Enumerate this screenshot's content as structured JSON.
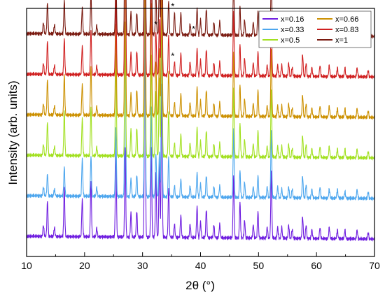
{
  "chart_data": {
    "type": "line",
    "xlabel": "2θ (°)",
    "ylabel": "Intensity (arb. units)",
    "xlim": [
      10,
      70
    ],
    "xticks": [
      "10",
      "20",
      "30",
      "40",
      "50",
      "60",
      "70"
    ],
    "y_tick_labels": "none",
    "grid": false,
    "legend_position": "top-right",
    "peaks_2theta": [
      12.9,
      13.6,
      14.8,
      16.5,
      19.6,
      21.1,
      22.1,
      25.4,
      27.0,
      28.0,
      29.0,
      30.4,
      31.5,
      32.3,
      32.9,
      33.3,
      34.5,
      35.5,
      36.6,
      38.2,
      39.4,
      40.0,
      41.0,
      42.3,
      43.3,
      45.7,
      46.8,
      47.6,
      49.1,
      49.9,
      51.5,
      52.2,
      53.3,
      54.0,
      55.2,
      55.8,
      57.6,
      58.2,
      59.2,
      60.6,
      62.2,
      63.6,
      64.9,
      67.0,
      68.9
    ],
    "series": [
      {
        "name": "x=0.16",
        "color": "#6f1ee0",
        "stack_offset": 0,
        "peak_heights": [
          0.05,
          0.16,
          0.04,
          0.22,
          0.17,
          0.25,
          0.04,
          0.42,
          0.4,
          0.11,
          0.12,
          0.95,
          0.4,
          0.3,
          0.35,
          0.68,
          0.22,
          0.06,
          0.1,
          0.06,
          0.14,
          0.07,
          0.13,
          0.06,
          0.06,
          0.27,
          0.16,
          0.08,
          0.06,
          0.12,
          0.05,
          0.3,
          0.05,
          0.05,
          0.06,
          0.04,
          0.1,
          0.06,
          0.04,
          0.05,
          0.05,
          0.04,
          0.04,
          0.04,
          0.03
        ]
      },
      {
        "name": "x=0.33",
        "color": "#4da6ee",
        "stack_offset": 1,
        "peak_heights": [
          0.04,
          0.1,
          0.03,
          0.13,
          0.17,
          0.18,
          0.04,
          0.3,
          0.78,
          0.08,
          0.1,
          0.95,
          0.4,
          0.2,
          0.2,
          0.8,
          0.18,
          0.05,
          0.08,
          0.05,
          0.11,
          0.06,
          0.1,
          0.05,
          0.05,
          0.3,
          0.12,
          0.07,
          0.05,
          0.1,
          0.05,
          0.3,
          0.05,
          0.04,
          0.05,
          0.04,
          0.1,
          0.06,
          0.04,
          0.05,
          0.04,
          0.04,
          0.03,
          0.04,
          0.03
        ]
      },
      {
        "name": "x=0.5",
        "color": "#a2e020",
        "stack_offset": 2,
        "peak_heights": [
          0.05,
          0.15,
          0.04,
          0.2,
          0.17,
          0.22,
          0.04,
          0.45,
          0.6,
          0.12,
          0.13,
          0.95,
          0.45,
          0.3,
          0.35,
          0.7,
          0.2,
          0.06,
          0.1,
          0.06,
          0.13,
          0.07,
          0.12,
          0.06,
          0.06,
          0.3,
          0.15,
          0.08,
          0.06,
          0.12,
          0.05,
          0.3,
          0.05,
          0.05,
          0.06,
          0.04,
          0.1,
          0.06,
          0.04,
          0.05,
          0.05,
          0.04,
          0.04,
          0.04,
          0.03
        ]
      },
      {
        "name": "x=0.66",
        "color": "#cc9000",
        "stack_offset": 3,
        "peak_heights": [
          0.05,
          0.16,
          0.04,
          0.18,
          0.14,
          0.22,
          0.04,
          0.4,
          0.85,
          0.1,
          0.12,
          0.95,
          0.5,
          0.25,
          0.3,
          0.8,
          0.2,
          0.06,
          0.1,
          0.06,
          0.13,
          0.07,
          0.12,
          0.06,
          0.06,
          0.28,
          0.14,
          0.08,
          0.06,
          0.12,
          0.05,
          0.3,
          0.05,
          0.05,
          0.06,
          0.04,
          0.1,
          0.06,
          0.04,
          0.05,
          0.05,
          0.04,
          0.04,
          0.04,
          0.03
        ]
      },
      {
        "name": "x=0.83",
        "color": "#d02020",
        "stack_offset": 4,
        "peak_heights": [
          0.05,
          0.15,
          0.04,
          0.16,
          0.13,
          0.2,
          0.04,
          0.35,
          0.9,
          0.1,
          0.11,
          0.95,
          0.5,
          0.2,
          0.25,
          0.85,
          0.18,
          0.06,
          0.1,
          0.06,
          0.12,
          0.07,
          0.12,
          0.06,
          0.06,
          0.28,
          0.14,
          0.08,
          0.06,
          0.11,
          0.05,
          0.28,
          0.05,
          0.05,
          0.06,
          0.04,
          0.1,
          0.06,
          0.04,
          0.05,
          0.05,
          0.04,
          0.04,
          0.04,
          0.03
        ]
      },
      {
        "name": "x=1",
        "color": "#7a1a10",
        "stack_offset": 5,
        "peak_heights": [
          0.05,
          0.14,
          0.04,
          0.15,
          0.12,
          0.18,
          0.04,
          0.3,
          0.85,
          0.1,
          0.1,
          0.95,
          0.45,
          0.2,
          0.25,
          0.85,
          0.15,
          0.1,
          0.1,
          0.05,
          0.12,
          0.07,
          0.12,
          0.06,
          0.06,
          0.25,
          0.13,
          0.07,
          0.06,
          0.11,
          0.05,
          0.28,
          0.05,
          0.05,
          0.06,
          0.04,
          0.1,
          0.06,
          0.04,
          0.05,
          0.05,
          0.04,
          0.04,
          0.04,
          0.03
        ]
      }
    ],
    "annotations": [
      {
        "text": "*",
        "series": "x=1",
        "x_2theta": 32.3
      },
      {
        "text": "*",
        "series": "x=1",
        "x_2theta": 34.6
      },
      {
        "text": "*",
        "series": "x=1",
        "x_2theta": 35.2
      },
      {
        "text": "*",
        "series": "x=1",
        "x_2theta": 38.8
      },
      {
        "text": "*",
        "series": "x=0.83",
        "x_2theta": 32.3
      },
      {
        "text": "*",
        "series": "x=0.83",
        "x_2theta": 35.2
      }
    ]
  }
}
